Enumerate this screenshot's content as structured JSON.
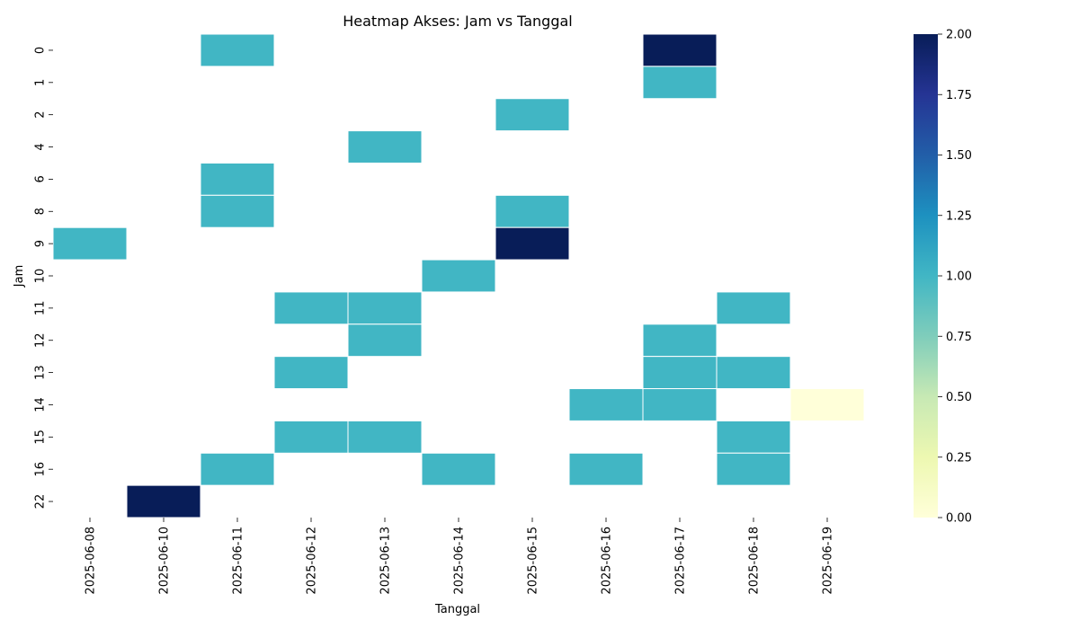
{
  "chart_data": {
    "type": "heatmap",
    "title": "Heatmap Akses: Jam vs Tanggal",
    "xlabel": "Tanggal",
    "ylabel": "Jam",
    "x_categories": [
      "2025-06-08",
      "2025-06-10",
      "2025-06-11",
      "2025-06-12",
      "2025-06-13",
      "2025-06-14",
      "2025-06-15",
      "2025-06-16",
      "2025-06-17",
      "2025-06-18",
      "2025-06-19"
    ],
    "y_categories": [
      "0",
      "1",
      "2",
      "4",
      "6",
      "8",
      "9",
      "10",
      "11",
      "12",
      "13",
      "14",
      "15",
      "16",
      "22"
    ],
    "cells": [
      {
        "x": "2025-06-11",
        "y": "0",
        "value": 1
      },
      {
        "x": "2025-06-17",
        "y": "0",
        "value": 2
      },
      {
        "x": "2025-06-17",
        "y": "1",
        "value": 1
      },
      {
        "x": "2025-06-15",
        "y": "2",
        "value": 1
      },
      {
        "x": "2025-06-13",
        "y": "4",
        "value": 1
      },
      {
        "x": "2025-06-11",
        "y": "6",
        "value": 1
      },
      {
        "x": "2025-06-11",
        "y": "8",
        "value": 1
      },
      {
        "x": "2025-06-15",
        "y": "8",
        "value": 1
      },
      {
        "x": "2025-06-08",
        "y": "9",
        "value": 1
      },
      {
        "x": "2025-06-15",
        "y": "9",
        "value": 2
      },
      {
        "x": "2025-06-14",
        "y": "10",
        "value": 1
      },
      {
        "x": "2025-06-12",
        "y": "11",
        "value": 1
      },
      {
        "x": "2025-06-13",
        "y": "11",
        "value": 1
      },
      {
        "x": "2025-06-18",
        "y": "11",
        "value": 1
      },
      {
        "x": "2025-06-13",
        "y": "12",
        "value": 1
      },
      {
        "x": "2025-06-17",
        "y": "12",
        "value": 1
      },
      {
        "x": "2025-06-12",
        "y": "13",
        "value": 1
      },
      {
        "x": "2025-06-17",
        "y": "13",
        "value": 1
      },
      {
        "x": "2025-06-18",
        "y": "13",
        "value": 1
      },
      {
        "x": "2025-06-16",
        "y": "14",
        "value": 1
      },
      {
        "x": "2025-06-17",
        "y": "14",
        "value": 1
      },
      {
        "x": "2025-06-19",
        "y": "14",
        "value": 0
      },
      {
        "x": "2025-06-12",
        "y": "15",
        "value": 1
      },
      {
        "x": "2025-06-13",
        "y": "15",
        "value": 1
      },
      {
        "x": "2025-06-18",
        "y": "15",
        "value": 1
      },
      {
        "x": "2025-06-11",
        "y": "16",
        "value": 1
      },
      {
        "x": "2025-06-14",
        "y": "16",
        "value": 1
      },
      {
        "x": "2025-06-16",
        "y": "16",
        "value": 1
      },
      {
        "x": "2025-06-18",
        "y": "16",
        "value": 1
      },
      {
        "x": "2025-06-10",
        "y": "22",
        "value": 2
      }
    ],
    "colorbar": {
      "min": 0,
      "max": 2,
      "ticks": [
        "0.00",
        "0.25",
        "0.50",
        "0.75",
        "1.00",
        "1.25",
        "1.50",
        "1.75",
        "2.00"
      ],
      "colormap": "YlGnBu"
    },
    "colors": {
      "v0": "#ffffd9",
      "v1": "#41b6c4",
      "v2": "#081d58"
    },
    "grid": false,
    "legend": "colorbar-right"
  }
}
